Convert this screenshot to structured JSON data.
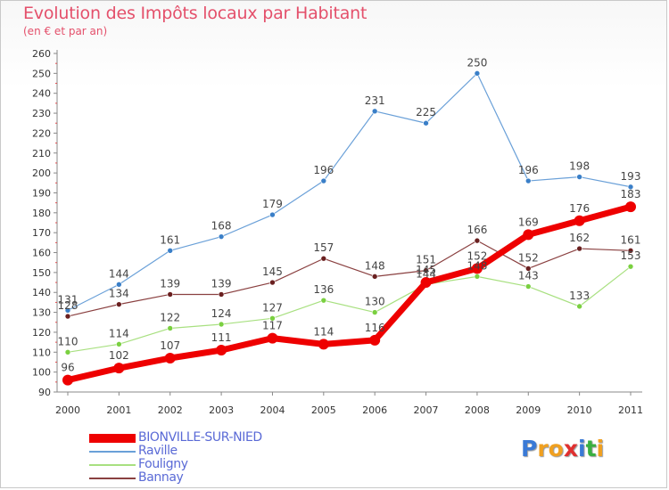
{
  "title": "Evolution des Impôts locaux par Habitant",
  "subtitle": "(en € et par an)",
  "brand": {
    "letters": [
      "P",
      "r",
      "o",
      "x",
      "i",
      "t",
      "i"
    ],
    "colors": [
      "#3a7ad6",
      "#f0a020",
      "#f0a020",
      "#e03030",
      "#3a7ad6",
      "#3ab040",
      "#f0a020"
    ]
  },
  "chart_data": {
    "type": "line",
    "x": [
      "2000",
      "2001",
      "2002",
      "2003",
      "2004",
      "2005",
      "2006",
      "2007",
      "2008",
      "2009",
      "2010",
      "2011"
    ],
    "ylim": [
      90,
      260
    ],
    "yticks": [
      90,
      100,
      110,
      120,
      130,
      140,
      150,
      160,
      170,
      180,
      190,
      200,
      210,
      220,
      230,
      240,
      250,
      260
    ],
    "grid": false,
    "legend_position": "bottom-left",
    "series": [
      {
        "name": "Raville",
        "color": "#6aa0d8",
        "marker": "#3a7fc8",
        "width": 1.2,
        "markerR": 3,
        "values": [
          131,
          144,
          161,
          168,
          179,
          196,
          231,
          225,
          250,
          196,
          198,
          193
        ]
      },
      {
        "name": "Fouligny",
        "color": "#a8e080",
        "marker": "#7ad040",
        "width": 1.2,
        "markerR": 3,
        "values": [
          110,
          114,
          122,
          124,
          127,
          136,
          130,
          144,
          148,
          143,
          133,
          153
        ]
      },
      {
        "name": "Bannay",
        "color": "#8a4040",
        "marker": "#6a2020",
        "width": 1.2,
        "markerR": 3,
        "values": [
          128,
          134,
          139,
          139,
          145,
          157,
          148,
          151,
          166,
          152,
          162,
          161
        ]
      },
      {
        "name": "BIONVILLE-SUR-NIED",
        "color": "#ee0000",
        "marker": "#ee0000",
        "width": 7,
        "markerR": 6,
        "values": [
          96,
          102,
          107,
          111,
          117,
          114,
          116,
          145,
          152,
          169,
          176,
          183
        ]
      }
    ],
    "legend_order": [
      3,
      0,
      1,
      2
    ]
  }
}
